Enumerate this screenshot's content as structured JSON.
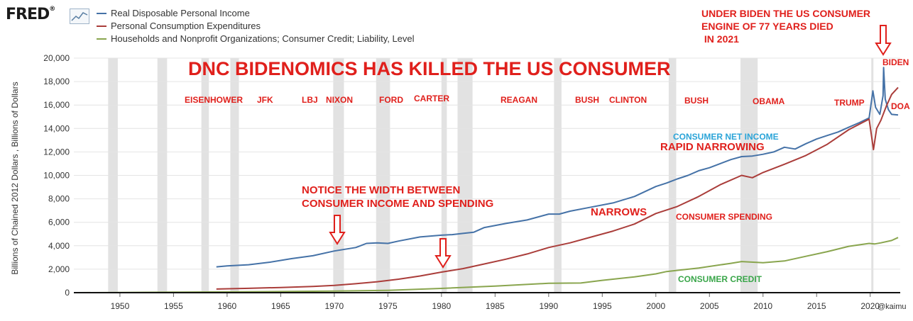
{
  "header": {
    "logo": "FRED",
    "logo_mark": "®"
  },
  "chart_data": {
    "type": "line",
    "ylabel": "Billions of Chained 2012 Dollars , Billions of Dollars",
    "ylim": [
      0,
      20000
    ],
    "xlim": [
      1945.7,
      2022.8
    ],
    "yticks": [
      "0",
      "2,000",
      "4,000",
      "6,000",
      "8,000",
      "10,000",
      "12,000",
      "14,000",
      "16,000",
      "18,000",
      "20,000"
    ],
    "xticks": [
      "1950",
      "1955",
      "1960",
      "1965",
      "1970",
      "1975",
      "1980",
      "1985",
      "1990",
      "1995",
      "2000",
      "2005",
      "2010",
      "2015",
      "2020"
    ],
    "recessions": [
      [
        1948.9,
        1949.8
      ],
      [
        1953.5,
        1954.4
      ],
      [
        1957.6,
        1958.3
      ],
      [
        1960.3,
        1961.1
      ],
      [
        1969.9,
        1970.9
      ],
      [
        1973.9,
        1975.2
      ],
      [
        1980.0,
        1980.5
      ],
      [
        1981.5,
        1982.9
      ],
      [
        1990.5,
        1991.2
      ],
      [
        2001.2,
        2001.9
      ],
      [
        2007.9,
        2009.5
      ],
      [
        2020.1,
        2020.3
      ]
    ],
    "legend_position": "top-left",
    "series": [
      {
        "name": "Real Disposable Personal Income",
        "color": "#4572a7",
        "points": [
          [
            1959,
            2200
          ],
          [
            1960,
            2280
          ],
          [
            1962,
            2380
          ],
          [
            1964,
            2600
          ],
          [
            1966,
            2900
          ],
          [
            1968,
            3150
          ],
          [
            1970,
            3550
          ],
          [
            1972,
            3850
          ],
          [
            1973,
            4200
          ],
          [
            1974,
            4250
          ],
          [
            1975,
            4200
          ],
          [
            1976,
            4400
          ],
          [
            1978,
            4750
          ],
          [
            1980,
            4900
          ],
          [
            1981,
            4950
          ],
          [
            1982,
            5050
          ],
          [
            1983,
            5150
          ],
          [
            1984,
            5550
          ],
          [
            1986,
            5900
          ],
          [
            1988,
            6200
          ],
          [
            1990,
            6700
          ],
          [
            1991,
            6700
          ],
          [
            1992,
            6950
          ],
          [
            1994,
            7300
          ],
          [
            1996,
            7650
          ],
          [
            1998,
            8200
          ],
          [
            2000,
            9050
          ],
          [
            2001,
            9350
          ],
          [
            2002,
            9700
          ],
          [
            2003,
            10000
          ],
          [
            2004,
            10400
          ],
          [
            2005,
            10650
          ],
          [
            2006,
            11000
          ],
          [
            2007,
            11350
          ],
          [
            2008,
            11600
          ],
          [
            2009,
            11650
          ],
          [
            2010,
            11800
          ],
          [
            2011,
            12000
          ],
          [
            2012,
            12400
          ],
          [
            2013,
            12250
          ],
          [
            2014,
            12700
          ],
          [
            2015,
            13100
          ],
          [
            2016,
            13400
          ],
          [
            2017,
            13700
          ],
          [
            2018,
            14100
          ],
          [
            2019,
            14500
          ],
          [
            2019.9,
            14900
          ],
          [
            2020.25,
            17200
          ],
          [
            2020.5,
            15800
          ],
          [
            2020.9,
            15200
          ],
          [
            2021.2,
            16800
          ],
          [
            2021.25,
            19200
          ],
          [
            2021.4,
            16500
          ],
          [
            2021.7,
            15600
          ],
          [
            2022,
            15200
          ],
          [
            2022.6,
            15150
          ]
        ]
      },
      {
        "name": "Personal Consumption Expenditures",
        "color": "#aa3d3a",
        "points": [
          [
            1959,
            310
          ],
          [
            1962,
            370
          ],
          [
            1965,
            440
          ],
          [
            1968,
            530
          ],
          [
            1970,
            620
          ],
          [
            1972,
            760
          ],
          [
            1974,
            930
          ],
          [
            1976,
            1150
          ],
          [
            1978,
            1420
          ],
          [
            1980,
            1750
          ],
          [
            1982,
            2050
          ],
          [
            1984,
            2450
          ],
          [
            1986,
            2850
          ],
          [
            1988,
            3300
          ],
          [
            1990,
            3850
          ],
          [
            1992,
            4250
          ],
          [
            1994,
            4750
          ],
          [
            1996,
            5250
          ],
          [
            1998,
            5850
          ],
          [
            2000,
            6750
          ],
          [
            2002,
            7350
          ],
          [
            2004,
            8200
          ],
          [
            2006,
            9200
          ],
          [
            2008,
            10000
          ],
          [
            2009,
            9800
          ],
          [
            2010,
            10250
          ],
          [
            2012,
            10950
          ],
          [
            2014,
            11700
          ],
          [
            2016,
            12650
          ],
          [
            2018,
            13900
          ],
          [
            2019.9,
            14800
          ],
          [
            2020.3,
            12200
          ],
          [
            2020.6,
            14000
          ],
          [
            2021,
            14700
          ],
          [
            2021.5,
            15900
          ],
          [
            2022,
            16900
          ],
          [
            2022.6,
            17500
          ]
        ]
      },
      {
        "name": "Households and Nonprofit Organizations; Consumer Credit; Liability, Level",
        "color": "#89a54e",
        "points": [
          [
            1946,
            0
          ],
          [
            1950,
            15
          ],
          [
            1955,
            40
          ],
          [
            1960,
            65
          ],
          [
            1965,
            95
          ],
          [
            1970,
            135
          ],
          [
            1975,
            200
          ],
          [
            1980,
            360
          ],
          [
            1985,
            560
          ],
          [
            1990,
            800
          ],
          [
            1993,
            820
          ],
          [
            1995,
            1050
          ],
          [
            1998,
            1350
          ],
          [
            2000,
            1600
          ],
          [
            2001,
            1800
          ],
          [
            2004,
            2100
          ],
          [
            2007,
            2500
          ],
          [
            2008,
            2650
          ],
          [
            2010,
            2550
          ],
          [
            2012,
            2700
          ],
          [
            2014,
            3100
          ],
          [
            2016,
            3500
          ],
          [
            2018,
            3950
          ],
          [
            2019.9,
            4200
          ],
          [
            2020.4,
            4150
          ],
          [
            2021,
            4250
          ],
          [
            2022,
            4450
          ],
          [
            2022.6,
            4700
          ]
        ]
      }
    ]
  },
  "annotations": {
    "headline": "DNC BIDENOMICS HAS KILLED THE US CONSUMER",
    "biden_note": "UNDER BIDEN THE US CONSUMER\nENGINE OF 77 YEARS DIED\n IN 2021",
    "presidents": [
      "EISENHOWER",
      "JFK",
      "LBJ",
      "NIXON",
      "FORD",
      "CARTER",
      "REAGAN",
      "BUSH",
      "CLINTON",
      "BUSH",
      "OBAMA",
      "TRUMP",
      "BIDEN",
      "DOA"
    ],
    "notice": "NOTICE THE WIDTH BETWEEN\nCONSUMER INCOME AND SPENDING",
    "narrows": "NARROWS",
    "net_income": "CONSUMER NET INCOME",
    "rapid": "RAPID NARROWING",
    "spending": "CONSUMER SPENDING",
    "credit": "CONSUMER CREDIT",
    "watermark": "@kaimu"
  },
  "colors": {
    "annotation_red": "#e0201c",
    "annotation_blue": "#2aa4d8",
    "annotation_green": "#3aa64a",
    "recession": "#e2e2e2",
    "grid": "#e4e4e4"
  }
}
